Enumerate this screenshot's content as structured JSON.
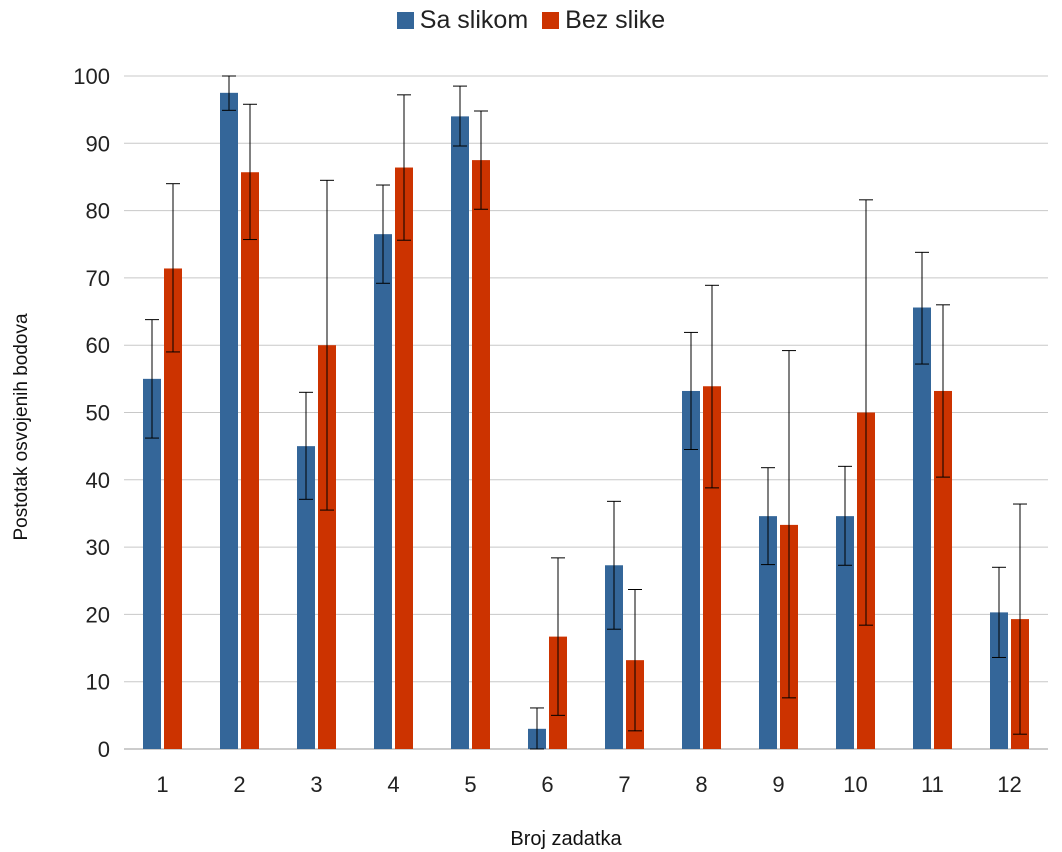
{
  "chart_data": {
    "type": "bar",
    "title": "",
    "xlabel": "Broj zadatka",
    "ylabel": "Postotak osvojenih bodova",
    "ylim": [
      0,
      100
    ],
    "yticks": [
      0,
      10,
      20,
      30,
      40,
      50,
      60,
      70,
      80,
      90,
      100
    ],
    "grid": true,
    "legend_position": "top-center",
    "categories": [
      "1",
      "2",
      "3",
      "4",
      "5",
      "6",
      "7",
      "8",
      "9",
      "10",
      "11",
      "12"
    ],
    "series": [
      {
        "name": "Sa slikom",
        "color": "#346699",
        "values": [
          55,
          97.5,
          45,
          76.5,
          94,
          3,
          27.3,
          53.2,
          34.6,
          34.6,
          65.6,
          20.3
        ],
        "error_low": [
          46.2,
          94.9,
          37.1,
          69.2,
          89.6,
          0,
          17.8,
          44.5,
          27.4,
          27.3,
          57.2,
          13.6
        ],
        "error_high": [
          63.8,
          100,
          53,
          83.8,
          98.5,
          6.1,
          36.8,
          61.9,
          41.8,
          42,
          73.8,
          27
        ]
      },
      {
        "name": "Bez slike",
        "color": "#cc3300",
        "values": [
          71.4,
          85.7,
          60,
          86.4,
          87.5,
          16.7,
          13.2,
          53.9,
          33.3,
          50,
          53.2,
          19.3
        ],
        "error_low": [
          59,
          75.7,
          35.5,
          75.6,
          80.2,
          5,
          2.7,
          38.8,
          7.6,
          18.4,
          40.4,
          2.2
        ],
        "error_high": [
          84,
          95.8,
          84.5,
          97.2,
          94.8,
          28.4,
          23.7,
          68.9,
          59.2,
          81.6,
          66,
          36.4
        ]
      }
    ]
  }
}
